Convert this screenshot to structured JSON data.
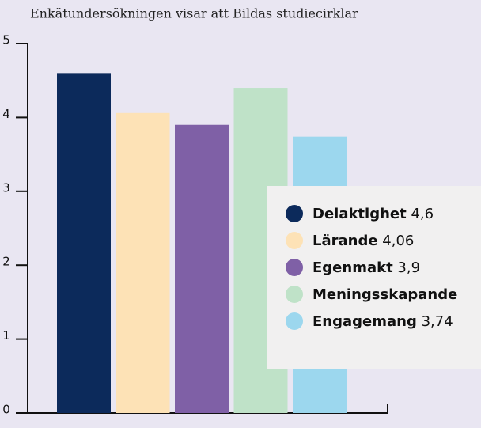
{
  "chart_data": {
    "type": "bar",
    "title": "Enkätundersökningen visar att Bildas studiecirklar",
    "categories": [
      "Delaktighet",
      "Lärande",
      "Egenmakt",
      "Meningsskapande",
      "Engagemang"
    ],
    "values": [
      4.6,
      4.06,
      3.9,
      4.4,
      3.74
    ],
    "value_labels": [
      "4,6",
      "4,06",
      "3,9",
      null,
      "3,74"
    ],
    "colors": [
      "#0c2a5b",
      "#fde2b6",
      "#7f60a6",
      "#bfe2c8",
      "#9cd7ee"
    ],
    "ylim": [
      0,
      5
    ],
    "yticks": [
      0,
      1,
      2,
      3,
      4,
      5
    ],
    "legend": "right"
  }
}
